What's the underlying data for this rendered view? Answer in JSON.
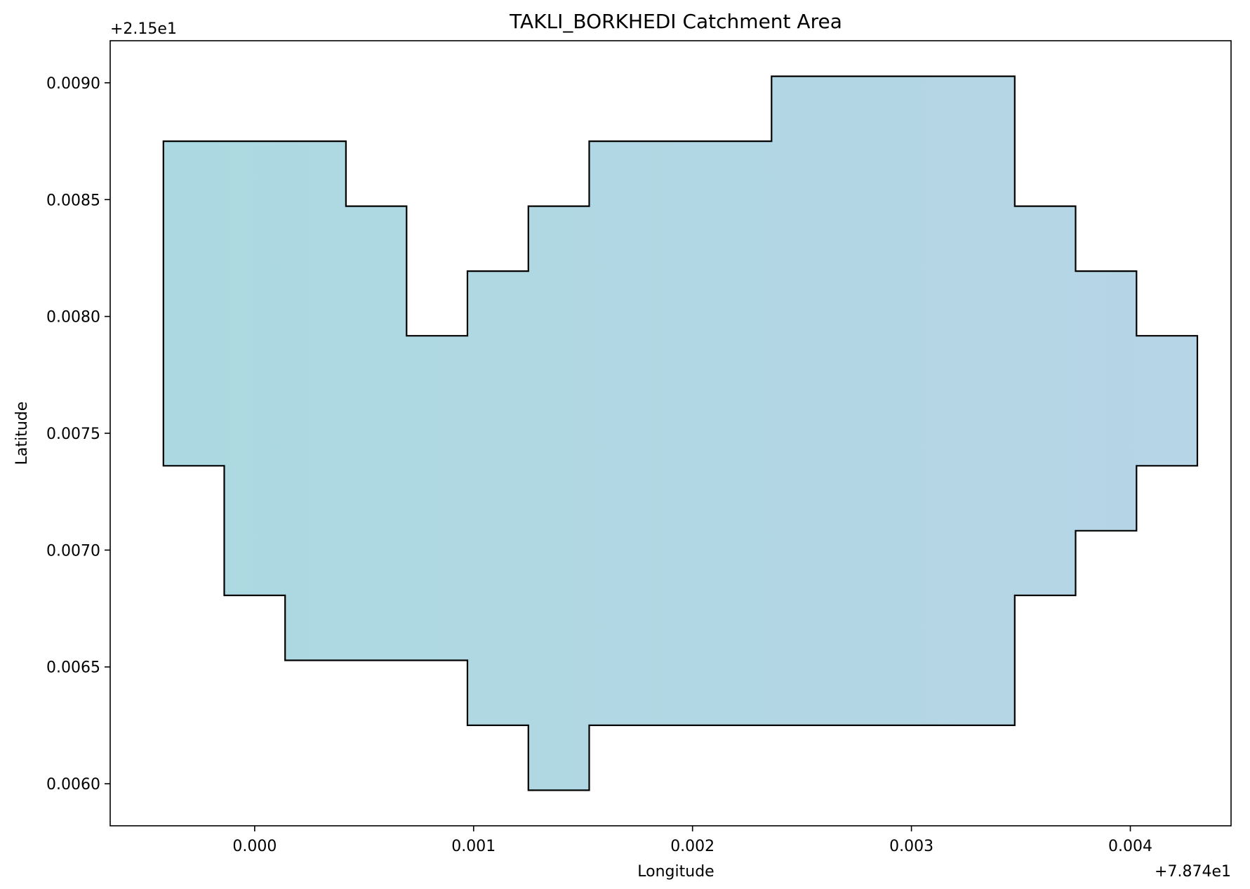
{
  "title": "TAKLI_BORKHEDI Catchment Area",
  "xlabel": "Longitude",
  "ylabel": "Latitude",
  "x_offset_text": "+7.874e1",
  "y_offset_text": "+2.15e1",
  "colors": {
    "fill_left": "#acd9e1",
    "fill_right": "#b6d5e6",
    "outline": "#000000",
    "frame": "#000000",
    "background": "#ffffff"
  },
  "chart_data": {
    "type": "map",
    "title": "TAKLI_BORKHEDI Catchment Area",
    "xlabel": "Longitude",
    "ylabel": "Latitude",
    "x_offset": 78.74,
    "y_offset": 21.5,
    "xlim": [
      -0.00066,
      0.00446
    ],
    "ylim": [
      0.00582,
      0.00918
    ],
    "x_ticks": [
      0.0,
      0.001,
      0.002,
      0.003,
      0.004
    ],
    "x_tick_labels": [
      "0.000",
      "0.001",
      "0.002",
      "0.003",
      "0.004"
    ],
    "y_ticks": [
      0.006,
      0.0065,
      0.007,
      0.0075,
      0.008,
      0.0085,
      0.009
    ],
    "y_tick_labels": [
      "0.0060",
      "0.0065",
      "0.0070",
      "0.0075",
      "0.0080",
      "0.0085",
      "0.0090"
    ],
    "grid": false,
    "polygon": {
      "name": "TAKLI_BORKHEDI",
      "x": [
        -0.000417,
        0.000417,
        0.000417,
        0.000694,
        0.000694,
        0.000972,
        0.000972,
        0.00125,
        0.00125,
        0.001528,
        0.001528,
        0.002361,
        0.002361,
        0.003472,
        0.003472,
        0.00375,
        0.00375,
        0.004028,
        0.004028,
        0.004306,
        0.004306,
        0.004028,
        0.004028,
        0.00375,
        0.00375,
        0.003472,
        0.003472,
        0.001528,
        0.001528,
        0.00125,
        0.00125,
        0.000972,
        0.000972,
        0.000139,
        0.000139,
        -0.000139,
        -0.000139,
        -0.000417
      ],
      "y": [
        0.00875,
        0.00875,
        0.008472,
        0.008472,
        0.007917,
        0.007917,
        0.008194,
        0.008194,
        0.008472,
        0.008472,
        0.00875,
        0.00875,
        0.009028,
        0.009028,
        0.008472,
        0.008472,
        0.008194,
        0.008194,
        0.007917,
        0.007917,
        0.007361,
        0.007361,
        0.007083,
        0.007083,
        0.006806,
        0.006806,
        0.00625,
        0.00625,
        0.005972,
        0.005972,
        0.00625,
        0.00625,
        0.006528,
        0.006528,
        0.006806,
        0.006806,
        0.007361,
        0.007361
      ]
    }
  }
}
